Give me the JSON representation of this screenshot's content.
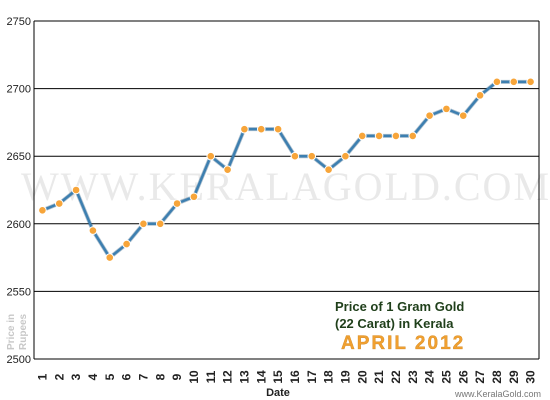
{
  "chart_data": {
    "type": "line",
    "title_lines": [
      "Price of 1 Gram Gold",
      "(22 Carat) in Kerala"
    ],
    "subtitle": "APRIL 2012",
    "xlabel": "Date",
    "ylabel_lines": [
      "Price in",
      "Rupees"
    ],
    "watermark": "WWW.KERALAGOLD.COM",
    "footer": "www.KeralaGold.com",
    "ylim": [
      2500,
      2750
    ],
    "y_ticks": [
      2500,
      2550,
      2600,
      2650,
      2700,
      2750
    ],
    "grid": true,
    "x": [
      1,
      2,
      3,
      4,
      5,
      6,
      7,
      8,
      9,
      10,
      11,
      12,
      13,
      14,
      15,
      16,
      17,
      18,
      19,
      20,
      21,
      22,
      23,
      24,
      25,
      26,
      27,
      28,
      29,
      30
    ],
    "series": [
      {
        "values": [
          2610,
          2615,
          2625,
          2595,
          2575,
          2585,
          2600,
          2600,
          2615,
          2620,
          2650,
          2640,
          2670,
          2670,
          2670,
          2650,
          2650,
          2640,
          2650,
          2665,
          2665,
          2665,
          2665,
          2680,
          2685,
          2680,
          2695,
          2705,
          2705,
          2705
        ]
      }
    ],
    "colors": {
      "line": "#3d7fb0",
      "marker_fill": "#f7a53a",
      "marker_stroke": "#ffffff",
      "grid": "#000000"
    }
  }
}
